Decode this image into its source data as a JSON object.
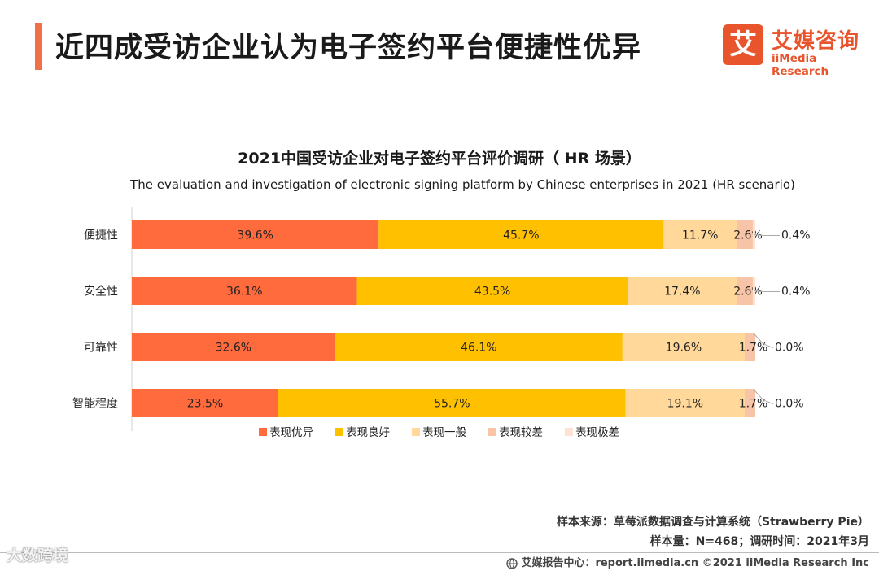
{
  "header": {
    "title": "近四成受访企业认为电子签约平台便捷性优异",
    "logo_mark": "艾",
    "logo_cn": "艾媒咨询",
    "logo_en": "iiMedia Research"
  },
  "colors": {
    "accent": "#f07048",
    "series": [
      "#ff6b3d",
      "#ffc000",
      "#ffd89a",
      "#f8c4a8",
      "#fce3d2"
    ]
  },
  "chart_data": {
    "type": "bar",
    "orientation": "horizontal-stacked",
    "title": "2021中国受访企业对电子签约平台评价调研（ HR 场景）",
    "subtitle": "The evaluation and investigation of electronic signing platform by Chinese enterprises in 2021 (HR scenario)",
    "unit": "%",
    "legend_position": "bottom",
    "categories": [
      "便捷性",
      "安全性",
      "可靠性",
      "智能程度"
    ],
    "series": [
      {
        "name": "表现优异",
        "values": [
          39.6,
          36.1,
          32.6,
          23.5
        ]
      },
      {
        "name": "表现良好",
        "values": [
          45.7,
          43.5,
          46.1,
          55.7
        ]
      },
      {
        "name": "表现一般",
        "values": [
          11.7,
          17.4,
          19.6,
          19.1
        ]
      },
      {
        "name": "表现较差",
        "values": [
          2.6,
          2.6,
          1.7,
          1.7
        ]
      },
      {
        "name": "表现极差",
        "values": [
          0.4,
          0.4,
          0.0,
          0.0
        ]
      }
    ]
  },
  "footer": {
    "source": "样本来源：草莓派数据调查与计算系统（Strawberry Pie）",
    "sample": "样本量：N=468；调研时间：2021年3月",
    "copyright": "艾媒报告中心：report.iimedia.cn   ©2021  iiMedia Research  Inc",
    "watermark": "大数跨境"
  }
}
